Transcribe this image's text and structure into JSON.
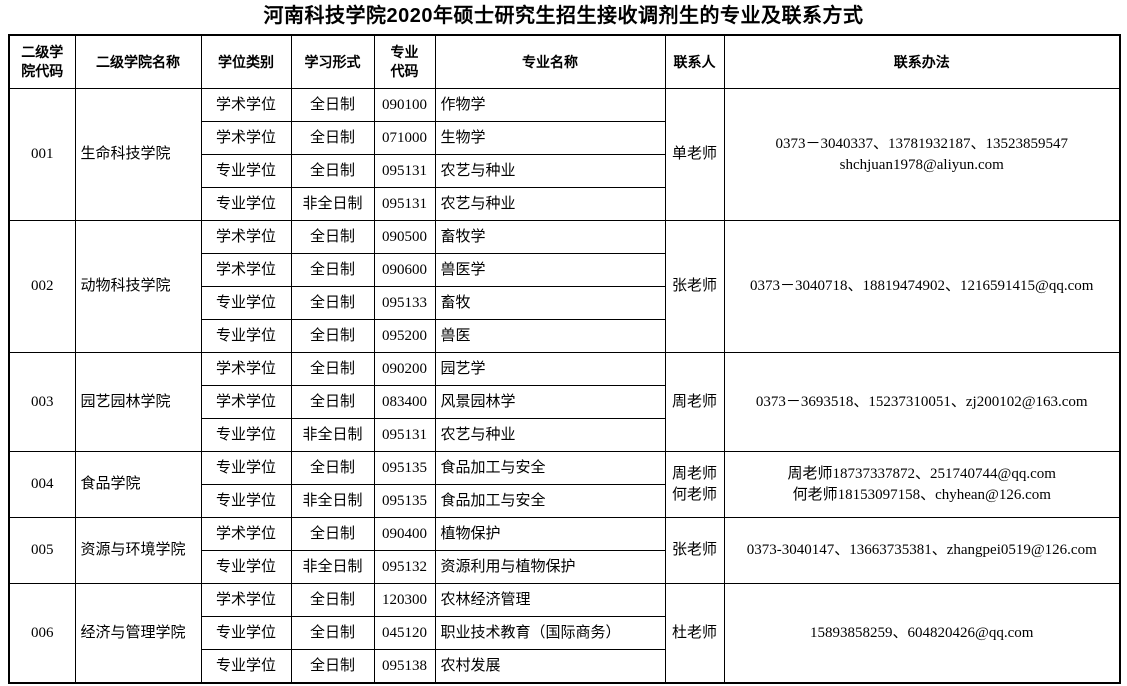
{
  "title": "河南科技学院2020年硕士研究生招生接收调剂生的专业及联系方式",
  "colors": {
    "background": "#ffffff",
    "text": "#000000",
    "border": "#000000"
  },
  "table": {
    "headers": [
      "二级学\n院代码",
      "二级学院名称",
      "学位类别",
      "学习形式",
      "专业\n代码",
      "专业名称",
      "联系人",
      "联系办法"
    ],
    "sections": [
      {
        "code": "001",
        "college": "生命科技学院",
        "contact_lines": [
          "单老师"
        ],
        "contact_method_lines": [
          "0373－3040337、13781932187、13523859547",
          "shchjuan1978@aliyun.com"
        ],
        "rows": [
          {
            "degree_type": "学术学位",
            "study_form": "全日制",
            "major_code": "090100",
            "major_name": "作物学"
          },
          {
            "degree_type": "学术学位",
            "study_form": "全日制",
            "major_code": "071000",
            "major_name": "生物学"
          },
          {
            "degree_type": "专业学位",
            "study_form": "全日制",
            "major_code": "095131",
            "major_name": "农艺与种业"
          },
          {
            "degree_type": "专业学位",
            "study_form": "非全日制",
            "major_code": "095131",
            "major_name": "农艺与种业"
          }
        ]
      },
      {
        "code": "002",
        "college": "动物科技学院",
        "contact_lines": [
          "张老师"
        ],
        "contact_method_lines": [
          "0373－3040718、18819474902、1216591415@qq.com"
        ],
        "rows": [
          {
            "degree_type": "学术学位",
            "study_form": "全日制",
            "major_code": "090500",
            "major_name": "畜牧学"
          },
          {
            "degree_type": "学术学位",
            "study_form": "全日制",
            "major_code": "090600",
            "major_name": "兽医学"
          },
          {
            "degree_type": "专业学位",
            "study_form": "全日制",
            "major_code": "095133",
            "major_name": "畜牧"
          },
          {
            "degree_type": "专业学位",
            "study_form": "全日制",
            "major_code": "095200",
            "major_name": "兽医"
          }
        ]
      },
      {
        "code": "003",
        "college": "园艺园林学院",
        "contact_lines": [
          "周老师"
        ],
        "contact_method_lines": [
          "0373－3693518、15237310051、zj200102@163.com"
        ],
        "rows": [
          {
            "degree_type": "学术学位",
            "study_form": "全日制",
            "major_code": "090200",
            "major_name": "园艺学"
          },
          {
            "degree_type": "学术学位",
            "study_form": "全日制",
            "major_code": "083400",
            "major_name": "风景园林学"
          },
          {
            "degree_type": "专业学位",
            "study_form": "非全日制",
            "major_code": "095131",
            "major_name": "农艺与种业"
          }
        ]
      },
      {
        "code": "004",
        "college": "食品学院",
        "contact_lines": [
          "周老师",
          "何老师"
        ],
        "contact_method_lines": [
          "周老师18737337872、251740744@qq.com",
          "何老师18153097158、chyhean@126.com"
        ],
        "rows": [
          {
            "degree_type": "专业学位",
            "study_form": "全日制",
            "major_code": "095135",
            "major_name": "食品加工与安全"
          },
          {
            "degree_type": "专业学位",
            "study_form": "非全日制",
            "major_code": "095135",
            "major_name": "食品加工与安全"
          }
        ]
      },
      {
        "code": "005",
        "college": "资源与环境学院",
        "contact_lines": [
          "张老师"
        ],
        "contact_method_lines": [
          "0373-3040147、13663735381、zhangpei0519@126.com"
        ],
        "rows": [
          {
            "degree_type": "学术学位",
            "study_form": "全日制",
            "major_code": "090400",
            "major_name": "植物保护"
          },
          {
            "degree_type": "专业学位",
            "study_form": "非全日制",
            "major_code": "095132",
            "major_name": "资源利用与植物保护"
          }
        ]
      },
      {
        "code": "006",
        "college": "经济与管理学院",
        "contact_lines": [
          "杜老师"
        ],
        "contact_method_lines": [
          "15893858259、604820426@qq.com"
        ],
        "rows": [
          {
            "degree_type": "学术学位",
            "study_form": "全日制",
            "major_code": "120300",
            "major_name": "农林经济管理"
          },
          {
            "degree_type": "专业学位",
            "study_form": "全日制",
            "major_code": "045120",
            "major_name": "职业技术教育（国际商务）"
          },
          {
            "degree_type": "专业学位",
            "study_form": "全日制",
            "major_code": "095138",
            "major_name": "农村发展"
          }
        ]
      }
    ]
  }
}
